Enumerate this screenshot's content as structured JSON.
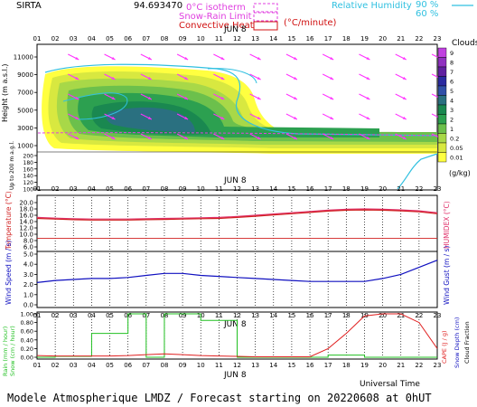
{
  "header": {
    "station": "SIRTA",
    "code": "94.693470",
    "legend_left": [
      {
        "label": "0°C isotherm",
        "color": "#e040e0",
        "style": "dashed"
      },
      {
        "label": "Snow-Rain Limit",
        "color": "#e040e0",
        "style": "dashed"
      },
      {
        "label": "Convective Heat",
        "color": "#d01010",
        "style": "solid",
        "unit": "(°C/minute)"
      }
    ],
    "legend_right": {
      "label": "Relative Humidity",
      "values": [
        "90 %",
        "60 %"
      ],
      "color": "#30c0e0"
    }
  },
  "hours": [
    "01",
    "02",
    "03",
    "04",
    "05",
    "06",
    "07",
    "08",
    "09",
    "10",
    "11",
    "12",
    "13",
    "14",
    "15",
    "16",
    "17",
    "18",
    "19",
    "20",
    "21",
    "22",
    "23"
  ],
  "date_label": "JUN  8",
  "universal_time_label": "Universal Time",
  "footer": "Modele Atmospherique LMDZ / Forecast starting on 20220608 at 0hUT",
  "colors": {
    "cloud_levels": [
      "#ffff40",
      "#d8e840",
      "#a8d848",
      "#6cc04c",
      "#2ca050",
      "#1a8850",
      "#2a7080",
      "#3050a8",
      "#2a2aa0",
      "#6020a0",
      "#9030c0",
      "#c040e0"
    ],
    "wind_arrow": "#ff30ff",
    "temperature": "#d02020",
    "humidex": "#e0306a",
    "wind_speed": "#1010c0",
    "rain": "#20c020",
    "cape": "#e02020"
  },
  "chart_data": [
    {
      "type": "heatmap",
      "title": "Clouds",
      "ylabel": "Height (m a.s.l.)",
      "ylabel_low": "Up to 200 m a.g.l.",
      "y_ticks_upper": [
        "11000",
        "9000",
        "7000",
        "5000",
        "3000",
        "1000"
      ],
      "y_ticks_lower": [
        "200",
        "180",
        "160",
        "140",
        "120",
        "100"
      ],
      "colorbar": {
        "label": "Clouds",
        "unit": "(g/kg)",
        "ticks": [
          "9",
          "8",
          "7",
          "6",
          "5",
          "4",
          "3",
          "2",
          "1",
          "0.2",
          "0.05",
          "0.01"
        ]
      },
      "x": [
        "01",
        "02",
        "03",
        "04",
        "05",
        "06",
        "07",
        "08",
        "09",
        "10",
        "11",
        "12",
        "13",
        "14",
        "15",
        "16",
        "17",
        "18",
        "19",
        "20",
        "21",
        "22",
        "23"
      ]
    },
    {
      "type": "line",
      "ylabel": "Temperature (°C)",
      "ylabel_right": "HUMIDEX (°C)",
      "y_ticks": [
        "20.0",
        "18.0",
        "16.0",
        "14.0",
        "12.0",
        "10.0",
        "8.0",
        "6.0"
      ],
      "ylim": [
        6,
        20
      ],
      "x": [
        "01",
        "02",
        "03",
        "04",
        "05",
        "06",
        "07",
        "08",
        "09",
        "10",
        "11",
        "12",
        "13",
        "14",
        "15",
        "16",
        "17",
        "18",
        "19",
        "20",
        "21",
        "22",
        "23"
      ],
      "series": [
        {
          "key": "temperature",
          "values": [
            15.0,
            14.8,
            14.6,
            14.5,
            14.5,
            14.5,
            14.6,
            14.7,
            14.8,
            14.9,
            15.0,
            15.3,
            15.7,
            16.1,
            16.5,
            16.9,
            17.3,
            17.6,
            17.7,
            17.6,
            17.4,
            17.1,
            16.5
          ]
        },
        {
          "key": "humidex",
          "values": [
            15.3,
            15.1,
            14.9,
            14.8,
            14.8,
            14.8,
            14.9,
            15.0,
            15.1,
            15.2,
            15.3,
            15.6,
            16.0,
            16.4,
            16.8,
            17.2,
            17.6,
            17.9,
            18.0,
            17.9,
            17.7,
            17.4,
            16.8
          ]
        }
      ],
      "hline": 8.7
    },
    {
      "type": "line",
      "ylabel": "Wind Speed (m / s)",
      "ylabel_right": "Wind Gust (m / s)",
      "y_ticks": [
        "5.0",
        "4.0",
        "3.0",
        "2.0",
        "1.0",
        "0.0"
      ],
      "ylim": [
        0,
        5
      ],
      "x": [
        "01",
        "02",
        "03",
        "04",
        "05",
        "06",
        "07",
        "08",
        "09",
        "10",
        "11",
        "12",
        "13",
        "14",
        "15",
        "16",
        "17",
        "18",
        "19",
        "20",
        "21",
        "22",
        "23"
      ],
      "series": [
        {
          "key": "wind_speed",
          "values": [
            2.2,
            2.4,
            2.5,
            2.6,
            2.6,
            2.7,
            2.9,
            3.1,
            3.1,
            2.9,
            2.8,
            2.7,
            2.6,
            2.5,
            2.4,
            2.3,
            2.3,
            2.3,
            2.3,
            2.6,
            3.0,
            3.7,
            4.4
          ]
        }
      ]
    },
    {
      "type": "line",
      "ylabel": "Rain (mm / hour)",
      "ylabel_2": "Snow (cm / hour)",
      "ylabel_right": "CAPE (J / g)",
      "ylabel_right_2": "Snow Depth (cm)",
      "ylabel_right_3": "Cloud Fraction",
      "y_ticks": [
        "1.00",
        "0.80",
        "0.60",
        "0.40",
        "0.20",
        "0.00"
      ],
      "ylim": [
        0,
        1
      ],
      "x": [
        "01",
        "02",
        "03",
        "04",
        "05",
        "06",
        "07",
        "08",
        "09",
        "10",
        "11",
        "12",
        "13",
        "14",
        "15",
        "16",
        "17",
        "18",
        "19",
        "20",
        "21",
        "22",
        "23"
      ],
      "series": [
        {
          "key": "rain",
          "step": true,
          "values": [
            0.0,
            0.02,
            0.02,
            0.55,
            0.55,
            1.0,
            0.0,
            1.0,
            1.0,
            0.85,
            0.85,
            0.0,
            0.0,
            0.0,
            0.0,
            0.0,
            0.05,
            0.05,
            0.0,
            0.0,
            0.0,
            0.0,
            0.0
          ]
        },
        {
          "key": "cape",
          "values": [
            0.04,
            0.03,
            0.03,
            0.03,
            0.03,
            0.04,
            0.06,
            0.08,
            0.06,
            0.04,
            0.03,
            0.02,
            0.01,
            0.01,
            0.01,
            0.01,
            0.2,
            0.55,
            0.95,
            1.0,
            1.0,
            0.8,
            0.2
          ]
        }
      ]
    }
  ]
}
